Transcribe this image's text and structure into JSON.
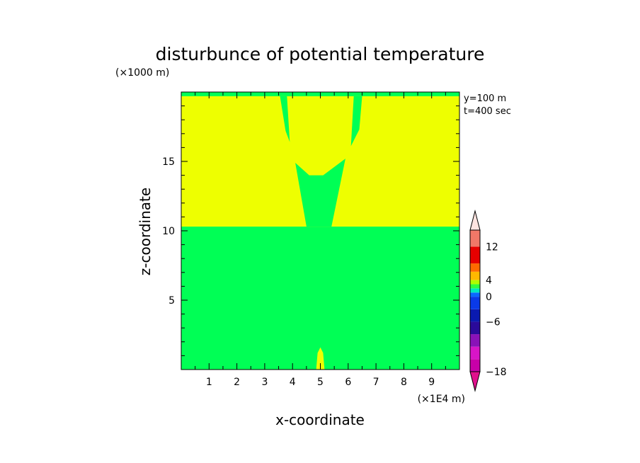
{
  "chart_data": {
    "type": "heatmap",
    "title": "disturbunce of potential temperature",
    "xlabel": "x-coordinate",
    "ylabel": "z-coordinate",
    "x_unit": "(×1E4 m)",
    "y_unit": "(×1000 m)",
    "xlim": [
      0,
      10
    ],
    "ylim": [
      0,
      20
    ],
    "xticks": [
      "1",
      "2",
      "3",
      "4",
      "5",
      "6",
      "7",
      "8",
      "9"
    ],
    "yticks": [
      "5",
      "10",
      "15"
    ],
    "annotations": [
      "y=100 m",
      "t=400 sec"
    ],
    "background_colors": {
      "lower": "#00ff55",
      "upper": "#eeff00"
    },
    "regions": [
      {
        "color": "#eeff00",
        "polygon": [
          [
            0,
            10.3
          ],
          [
            10,
            10.3
          ],
          [
            10,
            19.7
          ],
          [
            0,
            19.7
          ]
        ]
      },
      {
        "color": "#00ff55",
        "polygon": [
          [
            4.5,
            10.3
          ],
          [
            4.1,
            14.9
          ],
          [
            4.6,
            14.0
          ],
          [
            5.1,
            14.0
          ],
          [
            5.9,
            15.2
          ],
          [
            5.4,
            10.3
          ]
        ]
      },
      {
        "color": "#00ff55",
        "polygon": [
          [
            3.55,
            19.7
          ],
          [
            3.75,
            17.2
          ],
          [
            3.9,
            16.4
          ],
          [
            3.8,
            19.7
          ]
        ]
      },
      {
        "color": "#00ff55",
        "polygon": [
          [
            6.2,
            19.7
          ],
          [
            6.1,
            16.1
          ],
          [
            6.4,
            17.3
          ],
          [
            6.5,
            19.7
          ]
        ]
      },
      {
        "color": "#eeff00",
        "polygon": [
          [
            4.85,
            0
          ],
          [
            4.9,
            1.2
          ],
          [
            5.0,
            1.6
          ],
          [
            5.1,
            1.2
          ],
          [
            5.15,
            0
          ]
        ]
      }
    ],
    "colorbar": {
      "labels": [
        "12",
        "4",
        "0",
        "-6",
        "-18"
      ],
      "levels": [
        -18,
        -15,
        -12,
        -9,
        -6,
        -3,
        0,
        1,
        2,
        3,
        4,
        6,
        8,
        12,
        16
      ],
      "colors": [
        "#c800a8",
        "#d815c8",
        "#8a12b8",
        "#2a0a9a",
        "#0a1ab0",
        "#0a3ae8",
        "#0a68ff",
        "#00e8c0",
        "#30ff40",
        "#b0ff00",
        "#ffb800",
        "#ff6a00",
        "#e60000",
        "#f07868",
        "#f8b8b0"
      ],
      "under_color": "#e0108c",
      "over_color": "#fde4e0"
    }
  }
}
